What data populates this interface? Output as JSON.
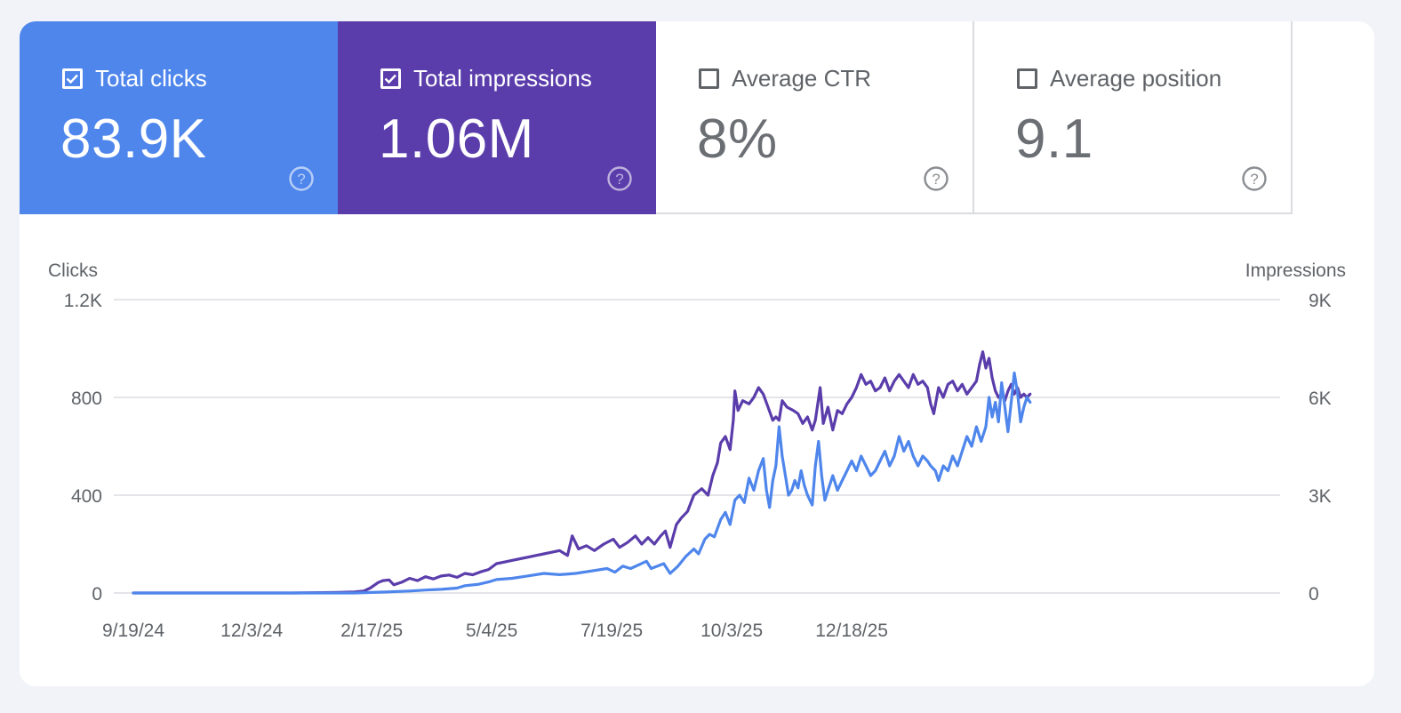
{
  "metrics": [
    {
      "label": "Total clicks",
      "value": "83.9K",
      "checked": true,
      "color": "#4f86ec"
    },
    {
      "label": "Total impressions",
      "value": "1.06M",
      "checked": true,
      "color": "#5a3dab"
    },
    {
      "label": "Average CTR",
      "value": "8%",
      "checked": false,
      "color": "#ffffff"
    },
    {
      "label": "Average position",
      "value": "9.1",
      "checked": false,
      "color": "#ffffff"
    }
  ],
  "chart_data": {
    "type": "line",
    "left_axis": {
      "title": "Clicks",
      "ticks": [
        "0",
        "400",
        "800",
        "1.2K"
      ],
      "values": [
        0,
        400,
        800,
        1200
      ],
      "range": [
        0,
        1200
      ]
    },
    "right_axis": {
      "title": "Impressions",
      "ticks": [
        "0",
        "3K",
        "6K",
        "9K"
      ],
      "values": [
        0,
        3000,
        6000,
        9000
      ],
      "range": [
        0,
        9000
      ]
    },
    "x_ticks": [
      "9/19/24",
      "12/3/24",
      "2/17/25",
      "5/4/25",
      "7/19/25",
      "10/3/25",
      "12/18/25"
    ],
    "x_tick_days": [
      0,
      75,
      151,
      227,
      303,
      379,
      455
    ],
    "grid": true,
    "series": [
      {
        "name": "Total impressions",
        "axis": "right",
        "color": "#5a3dab",
        "points": [
          [
            0,
            0
          ],
          [
            100,
            0
          ],
          [
            120,
            10
          ],
          [
            130,
            20
          ],
          [
            140,
            30
          ],
          [
            146,
            60
          ],
          [
            150,
            150
          ],
          [
            155,
            320
          ],
          [
            158,
            380
          ],
          [
            162,
            400
          ],
          [
            165,
            250
          ],
          [
            170,
            330
          ],
          [
            175,
            450
          ],
          [
            180,
            380
          ],
          [
            185,
            500
          ],
          [
            190,
            430
          ],
          [
            195,
            520
          ],
          [
            200,
            550
          ],
          [
            205,
            480
          ],
          [
            210,
            600
          ],
          [
            215,
            560
          ],
          [
            220,
            650
          ],
          [
            225,
            720
          ],
          [
            230,
            900
          ],
          [
            235,
            950
          ],
          [
            240,
            1000
          ],
          [
            245,
            1050
          ],
          [
            250,
            1100
          ],
          [
            255,
            1150
          ],
          [
            260,
            1200
          ],
          [
            265,
            1250
          ],
          [
            270,
            1300
          ],
          [
            275,
            1150
          ],
          [
            278,
            1750
          ],
          [
            282,
            1350
          ],
          [
            287,
            1450
          ],
          [
            292,
            1300
          ],
          [
            298,
            1500
          ],
          [
            304,
            1650
          ],
          [
            308,
            1400
          ],
          [
            313,
            1550
          ],
          [
            318,
            1750
          ],
          [
            322,
            1500
          ],
          [
            326,
            1700
          ],
          [
            330,
            1500
          ],
          [
            334,
            1750
          ],
          [
            337,
            1900
          ],
          [
            340,
            1400
          ],
          [
            344,
            2100
          ],
          [
            347,
            2300
          ],
          [
            351,
            2500
          ],
          [
            355,
            3000
          ],
          [
            360,
            3200
          ],
          [
            364,
            3000
          ],
          [
            367,
            3600
          ],
          [
            370,
            4000
          ],
          [
            372,
            4600
          ],
          [
            375,
            4800
          ],
          [
            378,
            4400
          ],
          [
            380,
            5300
          ],
          [
            381,
            6200
          ],
          [
            383,
            5600
          ],
          [
            386,
            5900
          ],
          [
            390,
            5800
          ],
          [
            393,
            6000
          ],
          [
            396,
            6300
          ],
          [
            399,
            6100
          ],
          [
            402,
            5700
          ],
          [
            405,
            5300
          ],
          [
            407,
            5400
          ],
          [
            409,
            5300
          ],
          [
            411,
            5900
          ],
          [
            414,
            5700
          ],
          [
            418,
            5600
          ],
          [
            421,
            5500
          ],
          [
            424,
            5200
          ],
          [
            427,
            5400
          ],
          [
            430,
            5000
          ],
          [
            432,
            5300
          ],
          [
            435,
            6300
          ],
          [
            437,
            5200
          ],
          [
            440,
            5700
          ],
          [
            443,
            5000
          ],
          [
            446,
            5600
          ],
          [
            449,
            5500
          ],
          [
            452,
            5800
          ],
          [
            455,
            6000
          ],
          [
            458,
            6300
          ],
          [
            461,
            6700
          ],
          [
            464,
            6400
          ],
          [
            467,
            6500
          ],
          [
            470,
            6200
          ],
          [
            473,
            6300
          ],
          [
            476,
            6600
          ],
          [
            479,
            6200
          ],
          [
            482,
            6500
          ],
          [
            485,
            6700
          ],
          [
            488,
            6500
          ],
          [
            491,
            6300
          ],
          [
            494,
            6700
          ],
          [
            497,
            6400
          ],
          [
            500,
            6500
          ],
          [
            503,
            6300
          ],
          [
            505,
            5800
          ],
          [
            507,
            5500
          ],
          [
            510,
            6300
          ],
          [
            513,
            6000
          ],
          [
            516,
            6400
          ],
          [
            519,
            6500
          ],
          [
            522,
            6200
          ],
          [
            525,
            6400
          ],
          [
            528,
            6100
          ],
          [
            531,
            6300
          ],
          [
            534,
            6500
          ],
          [
            536,
            7000
          ],
          [
            538,
            7400
          ],
          [
            540,
            6900
          ],
          [
            542,
            7200
          ],
          [
            544,
            6600
          ],
          [
            546,
            6200
          ],
          [
            548,
            6000
          ],
          [
            550,
            6100
          ],
          [
            552,
            5900
          ],
          [
            554,
            6200
          ],
          [
            556,
            6400
          ],
          [
            558,
            6100
          ],
          [
            560,
            6300
          ],
          [
            562,
            6000
          ],
          [
            564,
            6100
          ],
          [
            566,
            6000
          ],
          [
            568,
            6100
          ]
        ]
      },
      {
        "name": "Total clicks",
        "axis": "left",
        "color": "#4f86ec",
        "points": [
          [
            0,
            0
          ],
          [
            140,
            0
          ],
          [
            160,
            4
          ],
          [
            175,
            8
          ],
          [
            185,
            12
          ],
          [
            195,
            15
          ],
          [
            205,
            20
          ],
          [
            210,
            30
          ],
          [
            218,
            35
          ],
          [
            225,
            45
          ],
          [
            230,
            55
          ],
          [
            240,
            60
          ],
          [
            250,
            70
          ],
          [
            260,
            80
          ],
          [
            270,
            75
          ],
          [
            280,
            80
          ],
          [
            290,
            90
          ],
          [
            300,
            100
          ],
          [
            305,
            85
          ],
          [
            310,
            110
          ],
          [
            315,
            100
          ],
          [
            320,
            115
          ],
          [
            325,
            130
          ],
          [
            328,
            100
          ],
          [
            332,
            110
          ],
          [
            336,
            120
          ],
          [
            340,
            80
          ],
          [
            345,
            110
          ],
          [
            350,
            150
          ],
          [
            355,
            180
          ],
          [
            358,
            160
          ],
          [
            362,
            220
          ],
          [
            365,
            240
          ],
          [
            368,
            230
          ],
          [
            372,
            300
          ],
          [
            375,
            330
          ],
          [
            378,
            280
          ],
          [
            381,
            380
          ],
          [
            384,
            400
          ],
          [
            387,
            370
          ],
          [
            390,
            470
          ],
          [
            393,
            420
          ],
          [
            396,
            500
          ],
          [
            399,
            550
          ],
          [
            401,
            420
          ],
          [
            403,
            350
          ],
          [
            405,
            460
          ],
          [
            407,
            520
          ],
          [
            409,
            680
          ],
          [
            411,
            560
          ],
          [
            413,
            480
          ],
          [
            415,
            400
          ],
          [
            417,
            420
          ],
          [
            419,
            460
          ],
          [
            421,
            430
          ],
          [
            423,
            500
          ],
          [
            425,
            440
          ],
          [
            427,
            400
          ],
          [
            430,
            360
          ],
          [
            432,
            520
          ],
          [
            434,
            620
          ],
          [
            436,
            480
          ],
          [
            438,
            380
          ],
          [
            440,
            420
          ],
          [
            443,
            480
          ],
          [
            446,
            420
          ],
          [
            449,
            460
          ],
          [
            452,
            500
          ],
          [
            455,
            540
          ],
          [
            458,
            500
          ],
          [
            461,
            560
          ],
          [
            464,
            520
          ],
          [
            467,
            480
          ],
          [
            470,
            500
          ],
          [
            473,
            540
          ],
          [
            476,
            580
          ],
          [
            479,
            520
          ],
          [
            482,
            560
          ],
          [
            485,
            640
          ],
          [
            488,
            580
          ],
          [
            491,
            620
          ],
          [
            494,
            560
          ],
          [
            497,
            520
          ],
          [
            500,
            560
          ],
          [
            503,
            540
          ],
          [
            505,
            520
          ],
          [
            508,
            500
          ],
          [
            510,
            460
          ],
          [
            513,
            520
          ],
          [
            516,
            500
          ],
          [
            519,
            560
          ],
          [
            522,
            520
          ],
          [
            525,
            580
          ],
          [
            528,
            640
          ],
          [
            531,
            600
          ],
          [
            534,
            680
          ],
          [
            537,
            620
          ],
          [
            540,
            680
          ],
          [
            542,
            800
          ],
          [
            544,
            720
          ],
          [
            546,
            780
          ],
          [
            548,
            700
          ],
          [
            550,
            860
          ],
          [
            552,
            760
          ],
          [
            554,
            660
          ],
          [
            556,
            780
          ],
          [
            558,
            900
          ],
          [
            560,
            820
          ],
          [
            562,
            700
          ],
          [
            564,
            760
          ],
          [
            566,
            800
          ],
          [
            568,
            780
          ]
        ]
      }
    ]
  }
}
